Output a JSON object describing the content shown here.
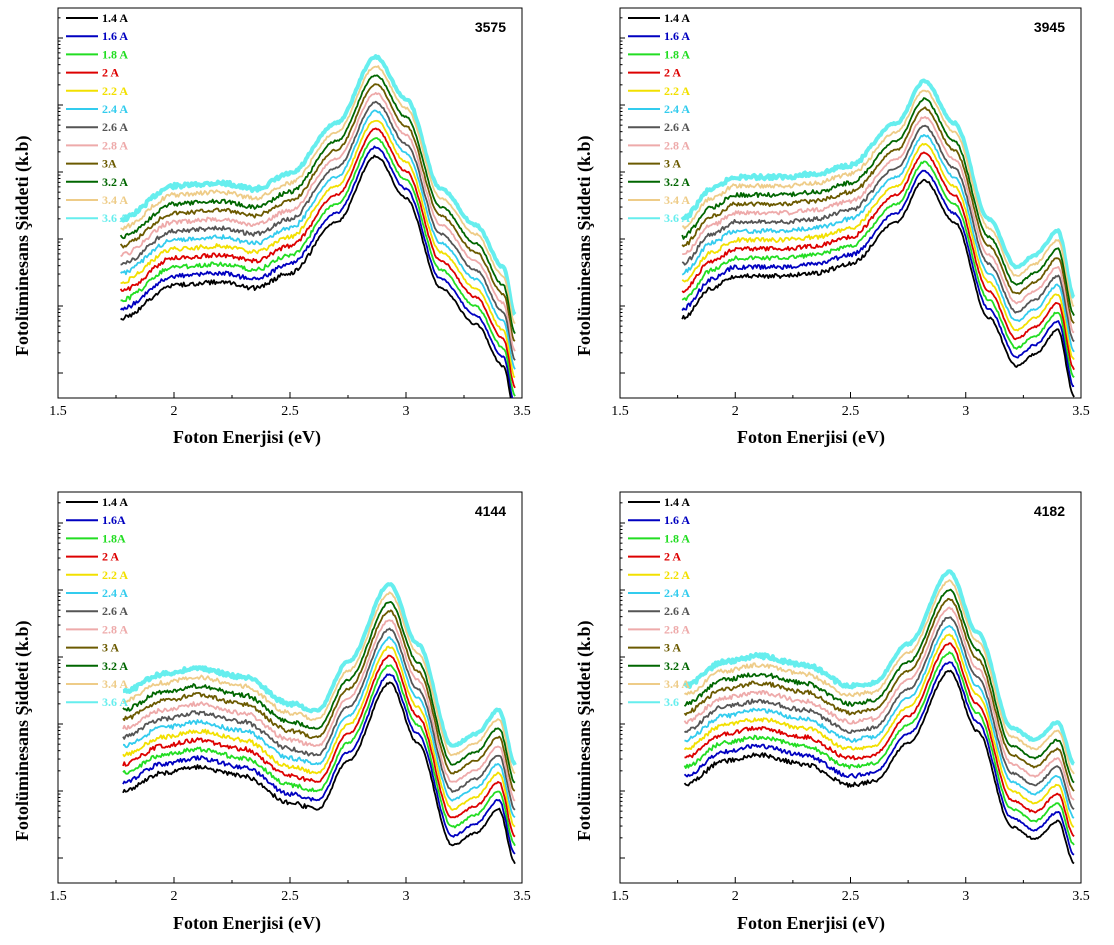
{
  "chart_data": [
    {
      "type": "line",
      "title": "3575",
      "xlabel": "Foton Enerjisi (eV)",
      "ylabel": "Fotolüminesans Şiddeti (k.b)",
      "xlim": [
        1.5,
        3.5
      ],
      "xticks": [
        "1.5",
        "2",
        "2.5",
        "3",
        "3.5"
      ],
      "yscale": "log",
      "legend_position": "top-left",
      "series": [
        {
          "name": "1.4 A",
          "color": "#000000"
        },
        {
          "name": "1.6 A",
          "color": "#0000c0"
        },
        {
          "name": "1.8 A",
          "color": "#22dd22"
        },
        {
          "name": "2 A",
          "color": "#dd0000"
        },
        {
          "name": "2.2 A",
          "color": "#f2e000"
        },
        {
          "name": "2.4 A",
          "color": "#33ccee"
        },
        {
          "name": "2.6 A",
          "color": "#555555"
        },
        {
          "name": "2.8 A",
          "color": "#eeaaaa"
        },
        {
          "name": "3A",
          "color": "#6b5a00"
        },
        {
          "name": "3.2 A",
          "color": "#006600"
        },
        {
          "name": "3.4 A",
          "color": "#eecc88"
        },
        {
          "name": "3.6 A",
          "color": "#66eeee"
        }
      ],
      "shape": {
        "x": [
          1.77,
          2.0,
          2.2,
          2.35,
          2.5,
          2.7,
          2.87,
          3.0,
          3.15,
          3.3,
          3.42,
          3.47
        ],
        "y": [
          0,
          0.55,
          0.6,
          0.5,
          0.75,
          1.6,
          2.7,
          2.0,
          0.5,
          -0.1,
          -0.8,
          -1.6
        ]
      }
    },
    {
      "type": "line",
      "title": "3945",
      "xlabel": "Foton Enerjisi (eV)",
      "ylabel": "Fotolüminesans Şiddeti (k.b)",
      "xlim": [
        1.5,
        3.5
      ],
      "xticks": [
        "1.5",
        "2",
        "2.5",
        "3",
        "3.5"
      ],
      "yscale": "log",
      "legend_position": "top-left",
      "series": [
        {
          "name": "1.4 A",
          "color": "#000000"
        },
        {
          "name": "1.6 A",
          "color": "#0000c0"
        },
        {
          "name": "1.8 A",
          "color": "#22dd22"
        },
        {
          "name": "2 A",
          "color": "#dd0000"
        },
        {
          "name": "2.2 A",
          "color": "#f2e000"
        },
        {
          "name": "2.4 A",
          "color": "#33ccee"
        },
        {
          "name": "2.6 A",
          "color": "#555555"
        },
        {
          "name": "2.8 A",
          "color": "#eeaaaa"
        },
        {
          "name": "3 A",
          "color": "#6b5a00"
        },
        {
          "name": "3.2 A",
          "color": "#006600"
        },
        {
          "name": "3.4 A",
          "color": "#eecc88"
        },
        {
          "name": "3.6 A",
          "color": "#66eeee"
        }
      ],
      "shape": {
        "x": [
          1.77,
          1.9,
          2.0,
          2.2,
          2.35,
          2.5,
          2.7,
          2.82,
          2.95,
          3.1,
          3.22,
          3.3,
          3.4,
          3.47
        ],
        "y": [
          0,
          0.5,
          0.7,
          0.7,
          0.75,
          0.9,
          1.6,
          2.3,
          1.6,
          0.0,
          -0.8,
          -0.6,
          -0.2,
          -1.3
        ]
      }
    },
    {
      "type": "line",
      "title": "4144",
      "xlabel": "Foton Enerjisi (eV)",
      "ylabel": "Fotolüminesans Şiddeti (k.b)",
      "xlim": [
        1.5,
        3.5
      ],
      "xticks": [
        "1.5",
        "2",
        "2.5",
        "3",
        "3.5"
      ],
      "yscale": "log",
      "legend_position": "top-left",
      "series": [
        {
          "name": "1.4 A",
          "color": "#000000"
        },
        {
          "name": "1.6A",
          "color": "#0000c0"
        },
        {
          "name": "1.8A",
          "color": "#22dd22"
        },
        {
          "name": "2 A",
          "color": "#dd0000"
        },
        {
          "name": "2.2 A",
          "color": "#f2e000"
        },
        {
          "name": "2.4 A",
          "color": "#33ccee"
        },
        {
          "name": "2.6 A",
          "color": "#555555"
        },
        {
          "name": "2.8 A",
          "color": "#eeaaaa"
        },
        {
          "name": "3 A",
          "color": "#6b5a00"
        },
        {
          "name": "3.2 A",
          "color": "#006600"
        },
        {
          "name": "3.4 A",
          "color": "#eecc88"
        },
        {
          "name": "3.6 A",
          "color": "#66eeee"
        }
      ],
      "shape": {
        "x": [
          1.78,
          1.95,
          2.1,
          2.3,
          2.5,
          2.62,
          2.75,
          2.93,
          3.05,
          3.2,
          3.3,
          3.4,
          3.47
        ],
        "y": [
          0.2,
          0.5,
          0.6,
          0.45,
          0.0,
          -0.1,
          0.7,
          2.0,
          1.0,
          -0.7,
          -0.5,
          -0.1,
          -1.0
        ]
      }
    },
    {
      "type": "line",
      "title": "4182",
      "xlabel": "Foton Enerjisi (eV)",
      "ylabel": "Fotolüminesans Şiddeti (k.b)",
      "xlim": [
        1.5,
        3.5
      ],
      "xticks": [
        "1.5",
        "2",
        "2.5",
        "3",
        "3.5"
      ],
      "yscale": "log",
      "legend_position": "top-left",
      "series": [
        {
          "name": "1.4 A",
          "color": "#000000"
        },
        {
          "name": "1.6 A",
          "color": "#0000c0"
        },
        {
          "name": "1.8 A",
          "color": "#22dd22"
        },
        {
          "name": "2 A",
          "color": "#dd0000"
        },
        {
          "name": "2.2 A",
          "color": "#f2e000"
        },
        {
          "name": "2.4 A",
          "color": "#33ccee"
        },
        {
          "name": "2.6 A",
          "color": "#555555"
        },
        {
          "name": "2.8 A",
          "color": "#eeaaaa"
        },
        {
          "name": "3 A",
          "color": "#6b5a00"
        },
        {
          "name": "3.2 A",
          "color": "#006600"
        },
        {
          "name": "3.4 A",
          "color": "#eecc88"
        },
        {
          "name": "3.6",
          "color": "#66eeee"
        }
      ],
      "shape": {
        "x": [
          1.78,
          1.95,
          2.1,
          2.3,
          2.5,
          2.6,
          2.75,
          2.93,
          3.05,
          3.2,
          3.3,
          3.4,
          3.47
        ],
        "y": [
          0.3,
          0.7,
          0.8,
          0.65,
          0.3,
          0.35,
          1.0,
          2.2,
          1.2,
          -0.4,
          -0.6,
          -0.3,
          -1.0
        ]
      }
    }
  ]
}
